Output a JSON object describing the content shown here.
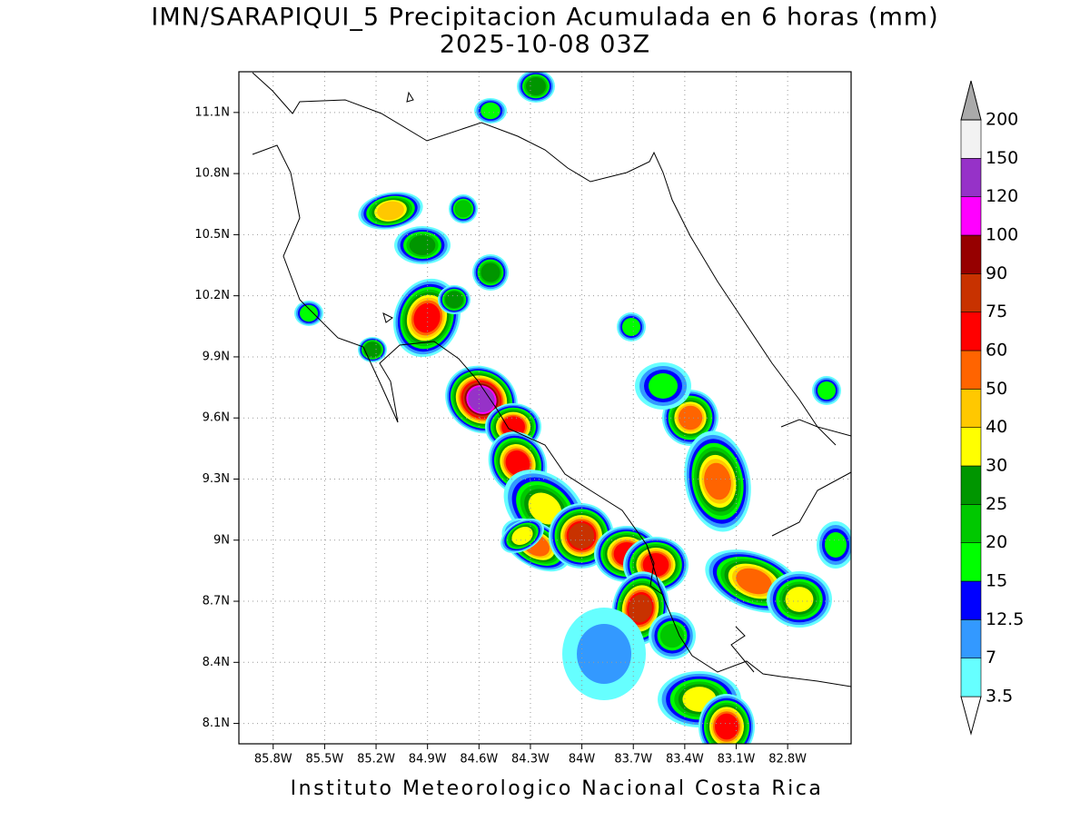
{
  "map": {
    "title": "IMN/SARAPIQUI_5 Precipitacion Acumulada en 6 horas (mm)",
    "subtitle": "2025-10-08 03Z",
    "xlim": [
      -86.0,
      -82.43
    ],
    "ylim": [
      8.0,
      11.3
    ],
    "xticks": [
      {
        "value": -85.8,
        "label": "85.8W"
      },
      {
        "value": -85.5,
        "label": "85.5W"
      },
      {
        "value": -85.2,
        "label": "85.2W"
      },
      {
        "value": -84.9,
        "label": "84.9W"
      },
      {
        "value": -84.6,
        "label": "84.6W"
      },
      {
        "value": -84.3,
        "label": "84.3W"
      },
      {
        "value": -84.0,
        "label": "84W"
      },
      {
        "value": -83.7,
        "label": "83.7W"
      },
      {
        "value": -83.4,
        "label": "83.4W"
      },
      {
        "value": -83.1,
        "label": "83.1W"
      },
      {
        "value": -82.8,
        "label": "82.8W"
      }
    ],
    "yticks": [
      {
        "value": 8.1,
        "label": "8.1N"
      },
      {
        "value": 8.4,
        "label": "8.4N"
      },
      {
        "value": 8.7,
        "label": "8.7N"
      },
      {
        "value": 9.0,
        "label": "9N"
      },
      {
        "value": 9.3,
        "label": "9.3N"
      },
      {
        "value": 9.6,
        "label": "9.6N"
      },
      {
        "value": 9.9,
        "label": "9.9N"
      },
      {
        "value": 10.2,
        "label": "10.2N"
      },
      {
        "value": 10.5,
        "label": "10.5N"
      },
      {
        "value": 10.8,
        "label": "10.8N"
      },
      {
        "value": 11.1,
        "label": "11.1N"
      }
    ],
    "grid": true,
    "colorbar": {
      "levels": [
        3.5,
        7,
        12.5,
        15,
        20,
        25,
        30,
        40,
        50,
        60,
        75,
        90,
        100,
        120,
        150,
        200
      ],
      "colors": [
        "#66ffff",
        "#3399ff",
        "#0000ff",
        "#00ff00",
        "#00c800",
        "#009600",
        "#ffff00",
        "#ffc800",
        "#ff6400",
        "#ff0000",
        "#c83200",
        "#960000",
        "#ff00ff",
        "#9632c8",
        "#f2f2f2"
      ],
      "under_color": "#ffffff",
      "over_color": "#aaaaaa"
    },
    "footer": "Instituto Meteorologico Nacional Costa Rica"
  }
}
